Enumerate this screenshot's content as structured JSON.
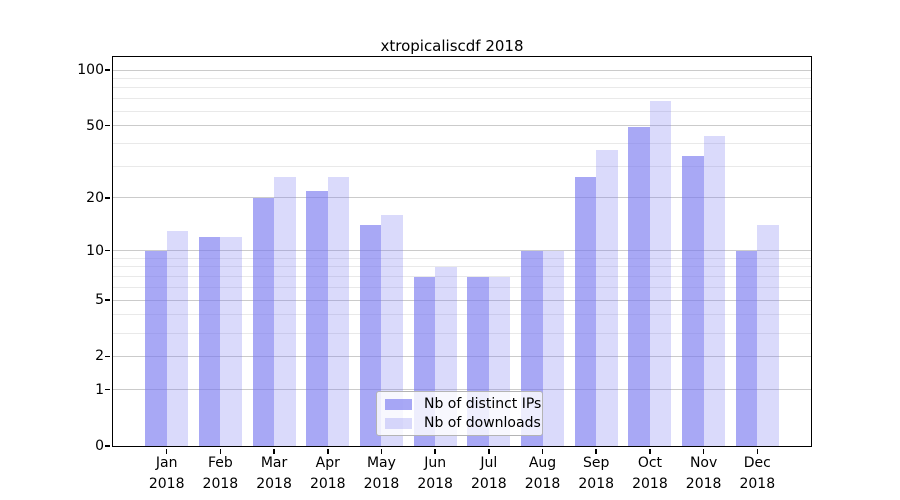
{
  "colors": {
    "background": "#ffffff",
    "axis": "#000000",
    "major_grid": "#cbcbcb",
    "minor_grid": "#e9e9e9",
    "legend_border": "#b4b4b4",
    "legend_background": "rgba(255,255,255,0.8)",
    "bar_distinct_ips": "rgba(120,120,240,0.645)",
    "bar_downloads": "rgba(120,120,240,0.27)"
  },
  "chart_data": {
    "type": "bar",
    "title": "xtropicaliscdf 2018",
    "year": "2018",
    "categories": [
      "Jan",
      "Feb",
      "Mar",
      "Apr",
      "May",
      "Jun",
      "Jul",
      "Aug",
      "Sep",
      "Oct",
      "Nov",
      "Dec"
    ],
    "series": [
      {
        "name": "Nb of distinct IPs",
        "color": "rgba(120,120,240,0.645)",
        "values": [
          10,
          12,
          20,
          22,
          14,
          7,
          7,
          10,
          26,
          49,
          34,
          10
        ]
      },
      {
        "name": "Nb of downloads",
        "color": "rgba(120,120,240,0.27)",
        "values": [
          13,
          12,
          26,
          26,
          16,
          8,
          7,
          10,
          37,
          68,
          44,
          14
        ]
      }
    ],
    "xlabel": "",
    "ylabel": "",
    "yscale": "log10(value+1)",
    "ylim": [
      0,
      117.5
    ],
    "y_major_ticks": [
      100,
      50,
      20,
      10,
      5,
      2,
      1,
      0
    ],
    "y_minor_gridlines": [
      90,
      80,
      70,
      60,
      40,
      30,
      9,
      8,
      7,
      6,
      4,
      3
    ],
    "grid": true,
    "legend_position": "lower center"
  }
}
